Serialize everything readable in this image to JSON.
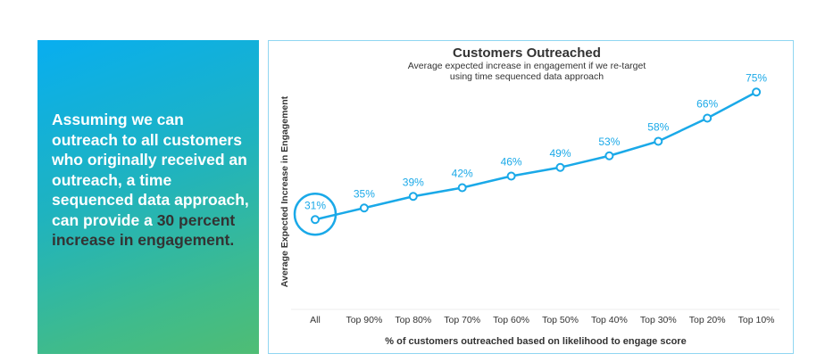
{
  "panel": {
    "text_main": "Assuming we can outreach to all customers who originally received an outreach, a time sequenced data approach, can provide a",
    "text_emphasis": "30 percent increase in engagement."
  },
  "colors": {
    "line": "#1aa9e8",
    "highlight_circle": "#1aa9e8"
  },
  "chart_data": {
    "type": "line",
    "title": "Customers Outreached",
    "subtitle_line1": "Average expected increase in engagement if we re-target",
    "subtitle_line2": "using time sequenced data approach",
    "xlabel": "% of customers outreached based on likelihood to engage score",
    "ylabel": "Average Expected Increase in Engagement",
    "categories": [
      "All",
      "Top 90%",
      "Top 80%",
      "Top 70%",
      "Top 60%",
      "Top 50%",
      "Top 40%",
      "Top 30%",
      "Top 20%",
      "Top 10%"
    ],
    "values": [
      31,
      35,
      39,
      42,
      46,
      49,
      53,
      58,
      66,
      75
    ],
    "data_labels": [
      "31%",
      "35%",
      "39%",
      "42%",
      "46%",
      "49%",
      "53%",
      "58%",
      "66%",
      "75%"
    ],
    "ylim": [
      0,
      80
    ],
    "grid": false,
    "highlighted_category": "All"
  }
}
